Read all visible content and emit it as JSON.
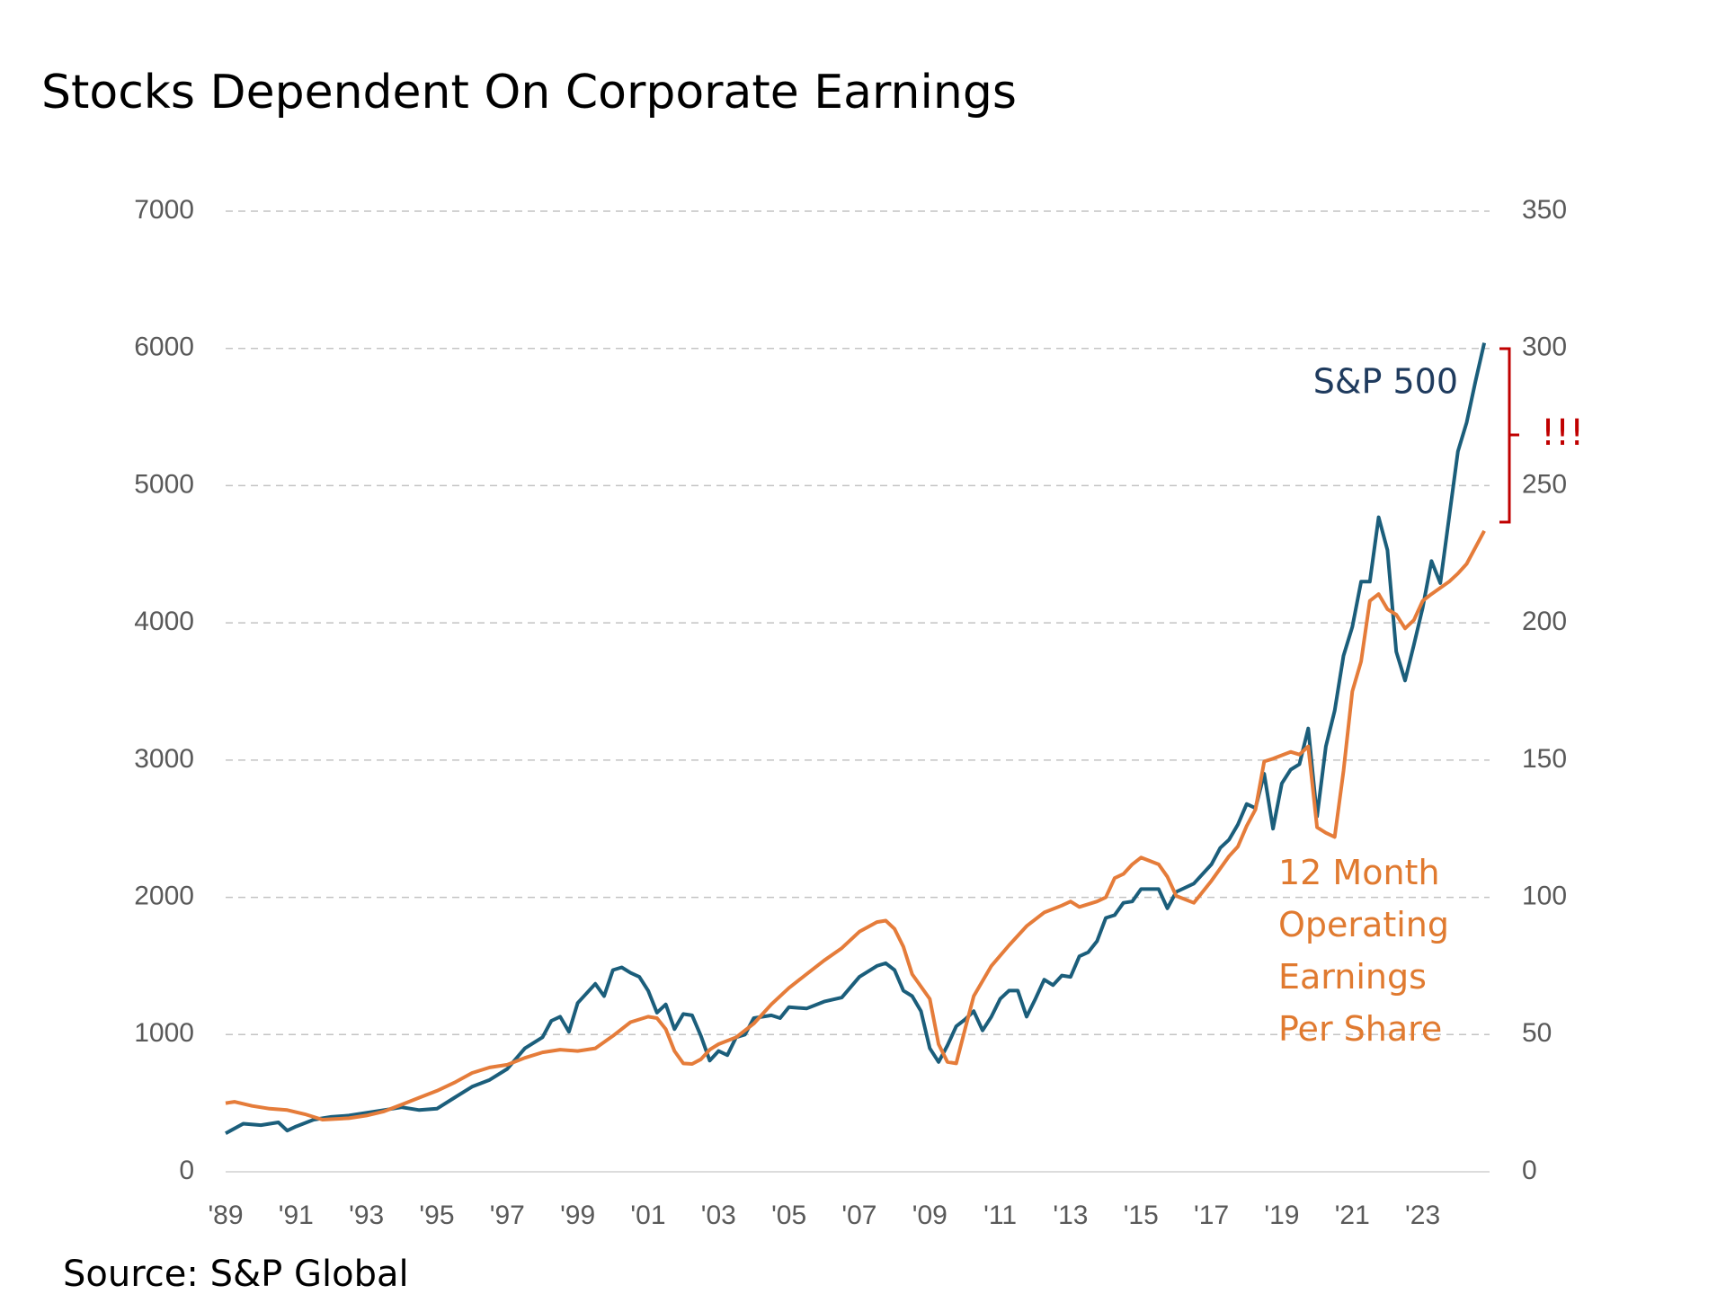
{
  "chart_data": {
    "type": "line",
    "title": "Stocks Dependent On Corporate Earnings",
    "source": "Source: S&P Global",
    "xlim": [
      1989,
      2024.9
    ],
    "xticks": [
      {
        "value": 1989,
        "label": "'89"
      },
      {
        "value": 1991,
        "label": "'91"
      },
      {
        "value": 1993,
        "label": "'93"
      },
      {
        "value": 1995,
        "label": "'95"
      },
      {
        "value": 1997,
        "label": "'97"
      },
      {
        "value": 1999,
        "label": "'99"
      },
      {
        "value": 2001,
        "label": "'01"
      },
      {
        "value": 2003,
        "label": "'03"
      },
      {
        "value": 2005,
        "label": "'05"
      },
      {
        "value": 2007,
        "label": "'07"
      },
      {
        "value": 2009,
        "label": "'09"
      },
      {
        "value": 2011,
        "label": "'11"
      },
      {
        "value": 2013,
        "label": "'13"
      },
      {
        "value": 2015,
        "label": "'15"
      },
      {
        "value": 2017,
        "label": "'17"
      },
      {
        "value": 2019,
        "label": "'19"
      },
      {
        "value": 2021,
        "label": "'21"
      },
      {
        "value": 2023,
        "label": "'23"
      }
    ],
    "ylim": [
      0,
      7000
    ],
    "yticks": [
      0,
      1000,
      2000,
      3000,
      4000,
      5000,
      6000,
      7000
    ],
    "y2lim": [
      0,
      350
    ],
    "y2ticks": [
      0,
      50,
      100,
      150,
      200,
      250,
      300,
      350
    ],
    "grid": true,
    "series": [
      {
        "name": "S&P 500",
        "color": "#1b5e7b",
        "label_color": "#1f3b5e",
        "x": [
          1989,
          1989.5,
          1990,
          1990.5,
          1990.75,
          1991,
          1991.5,
          1992,
          1992.5,
          1993,
          1993.5,
          1994,
          1994.5,
          1995,
          1995.5,
          1996,
          1996.5,
          1997,
          1997.5,
          1998,
          1998.25,
          1998.5,
          1998.75,
          1999,
          1999.5,
          1999.75,
          2000,
          2000.25,
          2000.5,
          2000.75,
          2001,
          2001.25,
          2001.5,
          2001.75,
          2002,
          2002.25,
          2002.5,
          2002.75,
          2003,
          2003.25,
          2003.5,
          2003.75,
          2004,
          2004.5,
          2004.75,
          2005,
          2005.5,
          2006,
          2006.5,
          2007,
          2007.5,
          2007.75,
          2008,
          2008.25,
          2008.5,
          2008.75,
          2009,
          2009.25,
          2009.5,
          2009.75,
          2010,
          2010.25,
          2010.5,
          2010.75,
          2011,
          2011.25,
          2011.5,
          2011.75,
          2012,
          2012.25,
          2012.5,
          2012.75,
          2013,
          2013.25,
          2013.5,
          2013.75,
          2014,
          2014.25,
          2014.5,
          2014.75,
          2015,
          2015.25,
          2015.5,
          2015.75,
          2016,
          2016.5,
          2017,
          2017.25,
          2017.5,
          2017.75,
          2018,
          2018.25,
          2018.5,
          2018.75,
          2019,
          2019.25,
          2019.5,
          2019.75,
          2020,
          2020.25,
          2020.5,
          2020.75,
          2021,
          2021.25,
          2021.5,
          2021.75,
          2022,
          2022.25,
          2022.5,
          2022.75,
          2023,
          2023.25,
          2023.5,
          2023.75,
          2024,
          2024.25,
          2024.5,
          2024.75
        ],
        "values": [
          280,
          350,
          340,
          360,
          300,
          330,
          380,
          400,
          410,
          430,
          450,
          470,
          450,
          460,
          540,
          620,
          670,
          750,
          900,
          980,
          1100,
          1130,
          1020,
          1230,
          1370,
          1280,
          1470,
          1490,
          1450,
          1420,
          1320,
          1160,
          1220,
          1040,
          1150,
          1140,
          990,
          810,
          880,
          850,
          980,
          1000,
          1120,
          1140,
          1120,
          1200,
          1190,
          1240,
          1270,
          1420,
          1500,
          1520,
          1470,
          1320,
          1280,
          1170,
          900,
          800,
          920,
          1060,
          1110,
          1170,
          1030,
          1130,
          1260,
          1320,
          1320,
          1130,
          1260,
          1400,
          1360,
          1430,
          1420,
          1570,
          1600,
          1680,
          1850,
          1870,
          1960,
          1970,
          2060,
          2060,
          2060,
          1920,
          2040,
          2100,
          2240,
          2360,
          2420,
          2530,
          2680,
          2650,
          2900,
          2500,
          2830,
          2930,
          2970,
          3230,
          2590,
          3100,
          3360,
          3760,
          3970,
          4300,
          4300,
          4770,
          4530,
          3790,
          3580,
          3840,
          4110,
          4450,
          4290,
          4770,
          5250,
          5460,
          5760,
          6040
        ]
      },
      {
        "name": "12 Month Operating Earnings Per Share",
        "color": "#e57c3a",
        "label_color": "#e07a30",
        "axis": "y2",
        "x": [
          1989,
          1989.25,
          1989.75,
          1990.25,
          1990.75,
          1991.25,
          1991.75,
          1992.5,
          1993,
          1993.5,
          1994,
          1994.5,
          1995,
          1995.5,
          1996,
          1996.5,
          1997,
          1997.5,
          1998,
          1998.5,
          1999,
          1999.5,
          2000,
          2000.5,
          2001,
          2001.25,
          2001.5,
          2001.75,
          2002,
          2002.25,
          2002.5,
          2002.75,
          2003,
          2003.5,
          2004,
          2004.5,
          2005,
          2005.5,
          2006,
          2006.5,
          2007,
          2007.5,
          2007.75,
          2008,
          2008.25,
          2008.5,
          2009,
          2009.25,
          2009.5,
          2009.75,
          2010,
          2010.25,
          2010.75,
          2011.25,
          2011.75,
          2012.25,
          2012.75,
          2013,
          2013.25,
          2013.75,
          2014,
          2014.25,
          2014.5,
          2014.75,
          2015,
          2015.5,
          2015.75,
          2016,
          2016.5,
          2017,
          2017.5,
          2017.75,
          2018,
          2018.25,
          2018.5,
          2018.75,
          2019.25,
          2019.5,
          2019.75,
          2020,
          2020.25,
          2020.5,
          2020.75,
          2021,
          2021.25,
          2021.5,
          2021.75,
          2022,
          2022.25,
          2022.5,
          2022.75,
          2023,
          2023.25,
          2023.75,
          2024,
          2024.25,
          2024.75
        ],
        "values": [
          25,
          25.5,
          24,
          23,
          22.5,
          21,
          19,
          19.5,
          20.5,
          22,
          24.5,
          27,
          29.5,
          32.5,
          36,
          38,
          39,
          41.5,
          43.5,
          44.5,
          44,
          45,
          49.5,
          54.5,
          56.5,
          56,
          52,
          44,
          39.5,
          39.3,
          41,
          44.5,
          46.5,
          49,
          54,
          61,
          67,
          72,
          77,
          81.5,
          87.5,
          91,
          91.5,
          88.5,
          82,
          72,
          63,
          46.5,
          40,
          39.5,
          52,
          64,
          75,
          82.5,
          89.5,
          94.5,
          97,
          98.5,
          96.5,
          98.5,
          100,
          107,
          108.5,
          112,
          114.5,
          112,
          107.5,
          100.5,
          98,
          106,
          115,
          118.5,
          126,
          132,
          149.5,
          150.5,
          153,
          152,
          155,
          125.5,
          123.5,
          122,
          146,
          175,
          186,
          208,
          210.5,
          205,
          203,
          198,
          201,
          208,
          210.5,
          215,
          218,
          221.5,
          233.5
        ]
      }
    ],
    "annotations": [
      {
        "text": "!!!",
        "color": "#c00000"
      }
    ]
  }
}
